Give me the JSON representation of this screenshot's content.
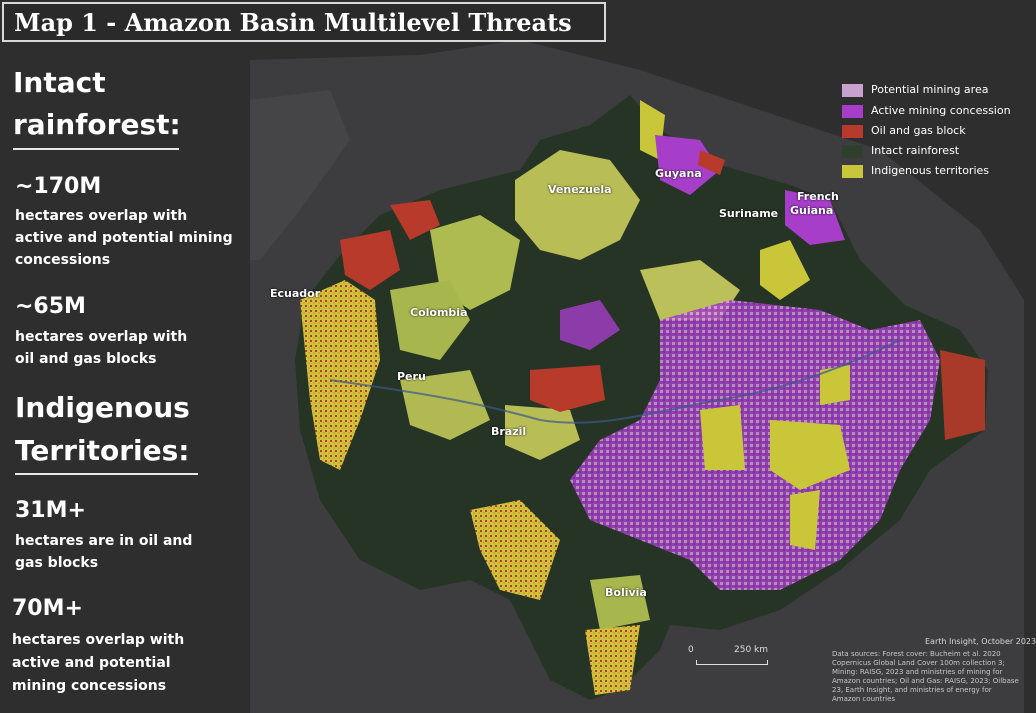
{
  "title": "Map 1 - Amazon Basin Multilevel Threats",
  "sidebar": {
    "heading1_line1": "Intact",
    "heading1_line2": "rainforest:",
    "stat1_value": "~170M",
    "stat1_desc_l1": "hectares overlap with",
    "stat1_desc_l2": "active and potential mining",
    "stat1_desc_l3": "concessions",
    "stat2_value": "~65M",
    "stat2_desc_l1": "hectares overlap with",
    "stat2_desc_l2": "oil and gas blocks",
    "heading2_line1": "Indigenous",
    "heading2_line2": "Territories:",
    "stat3_value": "31M+",
    "stat3_desc_l1": "hectares are in oil and",
    "stat3_desc_l2": "gas blocks",
    "stat4_value": "70M+",
    "stat4_desc_l1": "hectares overlap with",
    "stat4_desc_l2": "active and potential",
    "stat4_desc_l3": "mining concessions"
  },
  "legend": [
    {
      "label": "Potential mining area",
      "color": "#c7a2cf"
    },
    {
      "label": "Active mining concession",
      "color": "#a63ec9"
    },
    {
      "label": "Oil and gas block",
      "color": "#b83a2a"
    },
    {
      "label": "Intact rainforest",
      "color": "#2f3f2c"
    },
    {
      "label": "Indigenous territories",
      "color": "#c9c63a"
    }
  ],
  "places": {
    "venezuela": "Venezuela",
    "guyana": "Guyana",
    "suriname": "Suriname",
    "french_guiana_l1": "French",
    "french_guiana_l2": "Guiana",
    "ecuador": "Ecuador",
    "colombia": "Colombia",
    "peru": "Peru",
    "brazil": "Brazil",
    "bolivia": "Bolivia"
  },
  "scale": {
    "zero": "0",
    "distance": "250 km"
  },
  "credit": {
    "title": "Earth Insight, October 2023",
    "text": "Data sources: Forest cover: Bucheim et al. 2020 Copernicus Global Land Cover 100m collection 3; Mining: RAISG, 2023 and ministries of mining for Amazon countries; Oil and Gas: RAISG, 2023; Oilbase 23, Earth Insight, and ministries of energy for Amazon countries"
  }
}
